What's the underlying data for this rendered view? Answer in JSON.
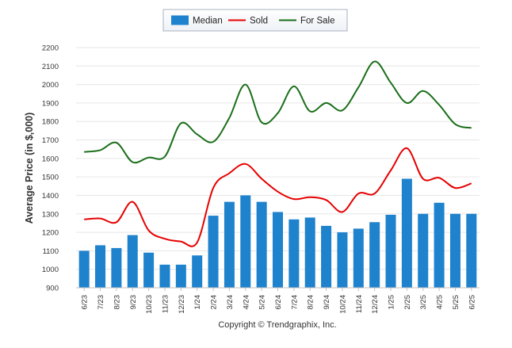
{
  "chart_data": {
    "type": "bar",
    "ylabel": "Average Price (in $,000)",
    "xlabel": "",
    "ylim": [
      900,
      2200
    ],
    "yticks": [
      900,
      1000,
      1100,
      1200,
      1300,
      1400,
      1500,
      1600,
      1700,
      1800,
      1900,
      2000,
      2100,
      2200
    ],
    "grid": true,
    "legend_position": "top-center",
    "categories": [
      "6/23",
      "7/23",
      "8/23",
      "9/23",
      "10/23",
      "11/23",
      "12/23",
      "1/24",
      "2/24",
      "3/24",
      "4/24",
      "5/24",
      "6/24",
      "7/24",
      "8/24",
      "9/24",
      "10/24",
      "11/24",
      "12/24",
      "1/25",
      "2/25",
      "3/25",
      "4/25",
      "5/25",
      "6/25"
    ],
    "series": [
      {
        "name": "Median",
        "kind": "bar",
        "color": "#1e82cc",
        "values": [
          1100,
          1130,
          1115,
          1185,
          1090,
          1025,
          1025,
          1075,
          1290,
          1365,
          1400,
          1365,
          1310,
          1270,
          1280,
          1235,
          1200,
          1220,
          1255,
          1295,
          1490,
          1300,
          1360,
          1300,
          1300
        ]
      },
      {
        "name": "Sold",
        "kind": "line",
        "color": "#e60000",
        "values": [
          1270,
          1275,
          1255,
          1365,
          1210,
          1165,
          1150,
          1145,
          1440,
          1520,
          1570,
          1490,
          1420,
          1380,
          1390,
          1375,
          1310,
          1410,
          1410,
          1535,
          1655,
          1490,
          1495,
          1440,
          1465
        ]
      },
      {
        "name": "For Sale",
        "kind": "line",
        "color": "#1a6e1a",
        "values": [
          1635,
          1645,
          1685,
          1580,
          1605,
          1610,
          1790,
          1730,
          1690,
          1820,
          2000,
          1795,
          1845,
          1990,
          1855,
          1900,
          1860,
          1985,
          2125,
          2010,
          1900,
          1965,
          1890,
          1785,
          1765
        ]
      }
    ]
  },
  "copyright": "Copyright © Trendgraphix, Inc."
}
